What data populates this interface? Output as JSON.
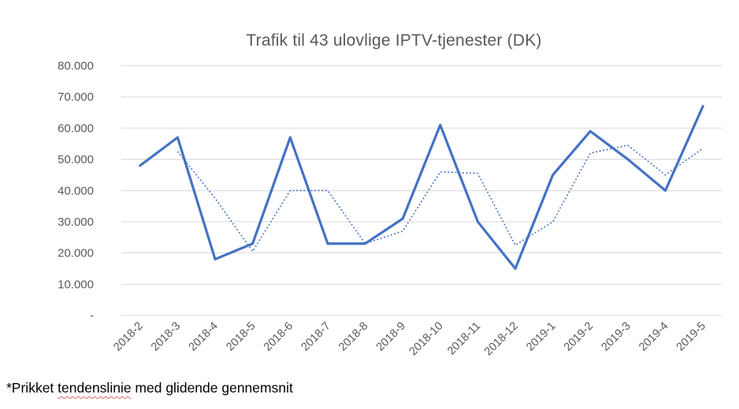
{
  "window": {
    "background": "#FFFFFF"
  },
  "chart_data": {
    "type": "line",
    "title": "Trafik til 43 ulovlige IPTV-tjenester (DK)",
    "categories": [
      "2018-2",
      "2018-3",
      "2018-4",
      "2018-5",
      "2018-6",
      "2018-7",
      "2018-8",
      "2018-9",
      "2018-10",
      "2018-11",
      "2018-12",
      "2019-1",
      "2019-2",
      "2019-3",
      "2019-4",
      "2019-5"
    ],
    "series": [
      {
        "name": "Trafik",
        "style": "solid",
        "color": "#4472C4",
        "values": [
          48000,
          57000,
          18000,
          23000,
          57000,
          23000,
          23000,
          31000,
          61000,
          30000,
          15000,
          45000,
          59000,
          50000,
          40000,
          67000
        ]
      },
      {
        "name": "Tendenslinie (glidende gennemsnit)",
        "style": "dotted",
        "color": "#4472C4",
        "values": [
          null,
          52500,
          37500,
          20500,
          40000,
          40000,
          23000,
          27000,
          46000,
          45500,
          22500,
          30000,
          52000,
          54500,
          45000,
          53500
        ]
      }
    ],
    "y_axis": {
      "min": 0,
      "max": 80000,
      "step": 10000,
      "tick_labels": [
        "-",
        "10.000",
        "20.000",
        "30.000",
        "40.000",
        "50.000",
        "60.000",
        "70.000",
        "80.000"
      ]
    },
    "x_axis": {
      "label_rotation_deg": 45
    },
    "grid": true,
    "legend_position": "none"
  },
  "footnote": {
    "prefix": "*Prikket ",
    "underlined_word": "tendenslinie",
    "suffix": " med glidende gennemsnit"
  },
  "colors": {
    "accent_line": "#4472C4",
    "gridline": "#D9D9D9",
    "axis_text": "#595959",
    "title_text": "#595959",
    "footnote_text": "#000000",
    "spellcheck_squiggle": "#E06666"
  }
}
